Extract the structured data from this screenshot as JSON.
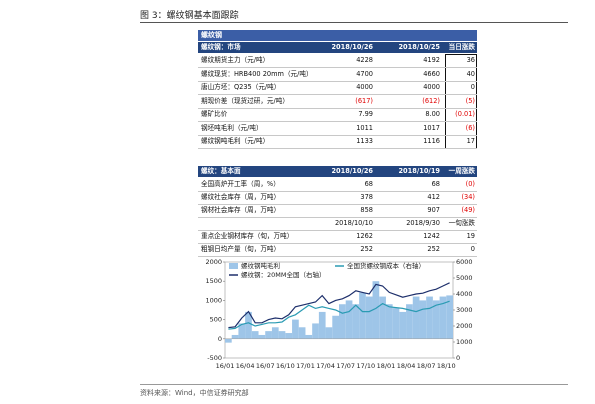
{
  "header": {
    "title": "图 3：螺纹钢基本面跟踪"
  },
  "section_title": "螺纹钢",
  "market_table": {
    "header": [
      "螺纹钢：市场",
      "2018/10/26",
      "2018/10/25",
      "当日涨跌"
    ],
    "rows": [
      [
        "螺纹期货主力（元/吨）",
        "4228",
        "4192",
        "36"
      ],
      [
        "螺纹现货：HRB400 20mm（元/吨）",
        "4700",
        "4660",
        "40"
      ],
      [
        "唐山方坯：Q235（元/吨）",
        "4000",
        "4000",
        "0"
      ],
      [
        "期现价差（现货过研，元/吨）",
        "(617)",
        "(612)",
        "(5)"
      ],
      [
        "螺矿比价",
        "7.99",
        "8.00",
        "(0.01)"
      ],
      [
        "钢坯吨毛利（元/吨）",
        "1011",
        "1017",
        "(6)"
      ],
      [
        "螺纹钢吨毛利（元/吨）",
        "1133",
        "1116",
        "17"
      ]
    ]
  },
  "fundamentals_table": {
    "header": [
      "螺纹：基本面",
      "2018/10/26",
      "2018/10/19",
      "一周涨跌"
    ],
    "weekly_rows": [
      [
        "全国高炉开工率（周，%）",
        "68",
        "68",
        "(0)"
      ],
      [
        "螺纹社会库存（周，万吨）",
        "378",
        "412",
        "(34)"
      ],
      [
        "钢材社会库存（周，万吨）",
        "858",
        "907",
        "(49)"
      ]
    ],
    "dekad_header": [
      "2018/10/10",
      "2018/9/30",
      "一旬涨跌"
    ],
    "dekad_rows": [
      [
        "重点企业钢材库存（旬，万吨）",
        "1262",
        "1242",
        "19"
      ],
      [
        "粗钢日均产量（旬，万吨）",
        "252",
        "252",
        "0"
      ]
    ]
  },
  "chart": {
    "type": "bar-line",
    "categories": [
      "16/01",
      null,
      null,
      "16/04",
      null,
      null,
      "16/07",
      null,
      null,
      "16/10",
      null,
      null,
      "17/01",
      null,
      null,
      "17/04",
      null,
      null,
      "17/07",
      null,
      null,
      "17/10",
      null,
      null,
      "18/01",
      null,
      null,
      "18/04",
      null,
      null,
      "18/07",
      null,
      null,
      "18/10"
    ],
    "ylim": [
      -500,
      2000
    ],
    "yticks": [
      -500,
      0,
      500,
      1000,
      1500,
      2000
    ],
    "y2lim": [
      0,
      6000
    ],
    "y2ticks": [
      0,
      1000,
      2000,
      3000,
      4000,
      5000,
      6000
    ],
    "series": [
      {
        "name": "螺纹钢吨毛利",
        "color": "#9ec5e8",
        "kind": "bar",
        "values": [
          -100,
          100,
          400,
          700,
          200,
          100,
          200,
          300,
          200,
          150,
          500,
          300,
          100,
          400,
          700,
          300,
          600,
          900,
          1000,
          900,
          1200,
          1100,
          1500,
          1100,
          900,
          800,
          700,
          900,
          1100,
          1000,
          1100,
          1000,
          1100,
          1130
        ]
      },
      {
        "name": "螺纹钢：20MM全国（右轴）",
        "color": "#1d2f6b",
        "kind": "line",
        "axis": "y2",
        "values": [
          1900,
          1950,
          2500,
          2900,
          2200,
          2200,
          2400,
          2500,
          2450,
          2700,
          3200,
          3300,
          3400,
          3500,
          3900,
          3400,
          3600,
          3700,
          3900,
          4200,
          4100,
          4000,
          4600,
          4500,
          4100,
          3950,
          3800,
          3900,
          4000,
          4050,
          4200,
          4300,
          4500,
          4700
        ]
      },
      {
        "name": "全国货螺纹钢成本（右轴）",
        "color": "#2a9bb3",
        "kind": "line",
        "axis": "y2",
        "values": [
          1800,
          1850,
          2100,
          2200,
          2000,
          2100,
          2200,
          2200,
          2250,
          2550,
          2700,
          3000,
          3300,
          3100,
          3200,
          3100,
          3000,
          2800,
          2900,
          3300,
          2900,
          2900,
          3100,
          3400,
          3200,
          3150,
          3100,
          3000,
          2900,
          3050,
          3100,
          3300,
          3400,
          3550
        ]
      }
    ]
  },
  "source": "资料来源：Wind，中信证券研究部"
}
